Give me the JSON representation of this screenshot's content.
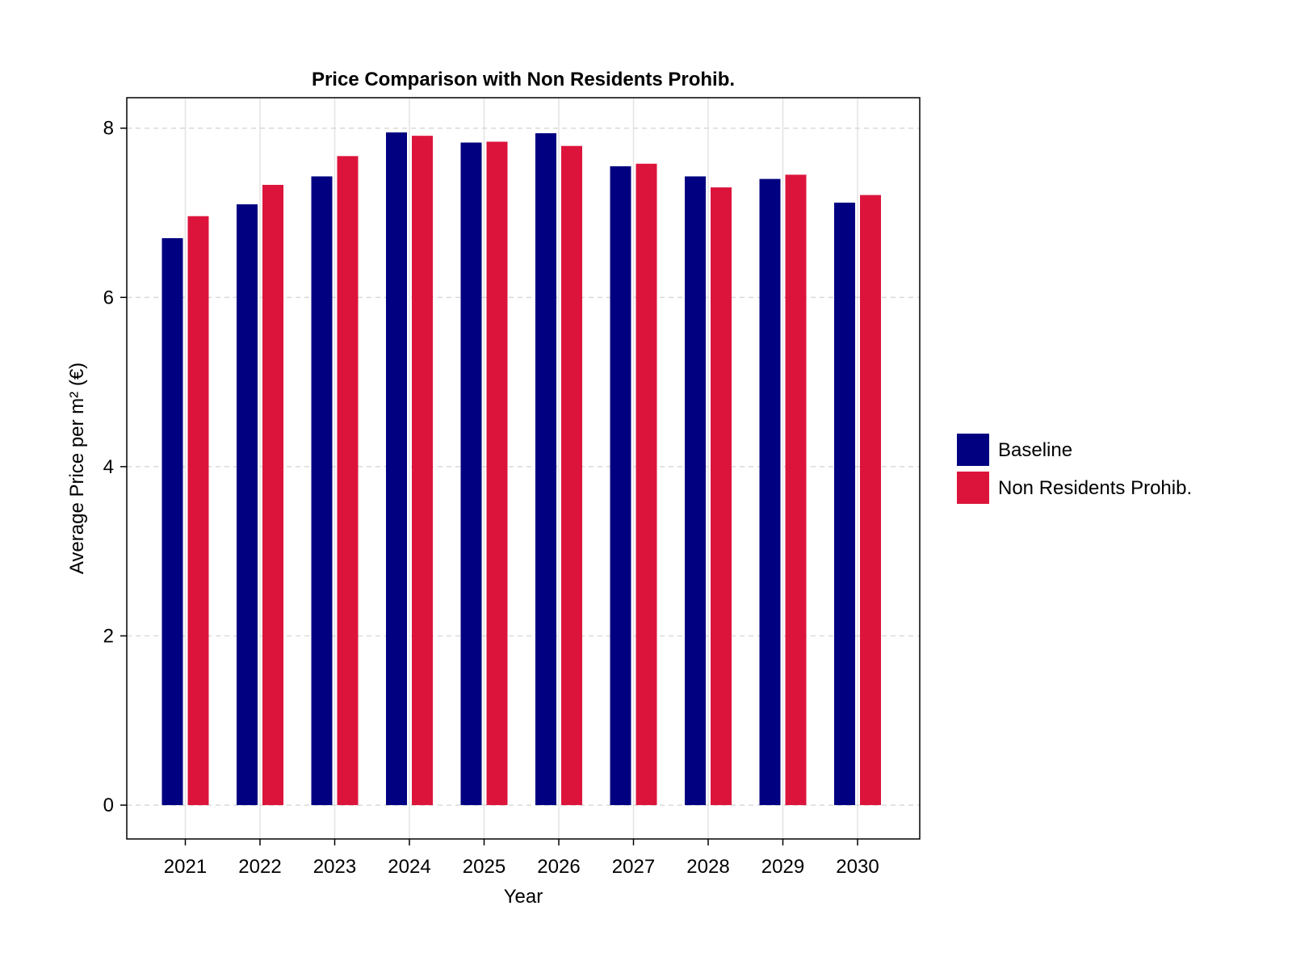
{
  "chart_data": {
    "type": "bar",
    "title": "Price Comparison with Non Residents Prohib.",
    "xlabel": "Year",
    "ylabel": "Average Price per m² (€)",
    "categories": [
      "2021",
      "2022",
      "2023",
      "2024",
      "2025",
      "2026",
      "2027",
      "2028",
      "2029",
      "2030"
    ],
    "series": [
      {
        "name": "Baseline",
        "color": "#000080",
        "values": [
          6.7,
          7.1,
          7.43,
          7.95,
          7.83,
          7.94,
          7.55,
          7.43,
          7.4,
          7.12
        ]
      },
      {
        "name": "Non Residents Prohib.",
        "color": "#DC143C",
        "values": [
          6.96,
          7.33,
          7.67,
          7.91,
          7.84,
          7.79,
          7.58,
          7.3,
          7.45,
          7.21
        ]
      }
    ],
    "ylim": [
      -0.4,
      8.36
    ],
    "yticks": [
      0,
      2,
      4,
      6,
      8
    ],
    "grid": true,
    "legend": "right"
  }
}
